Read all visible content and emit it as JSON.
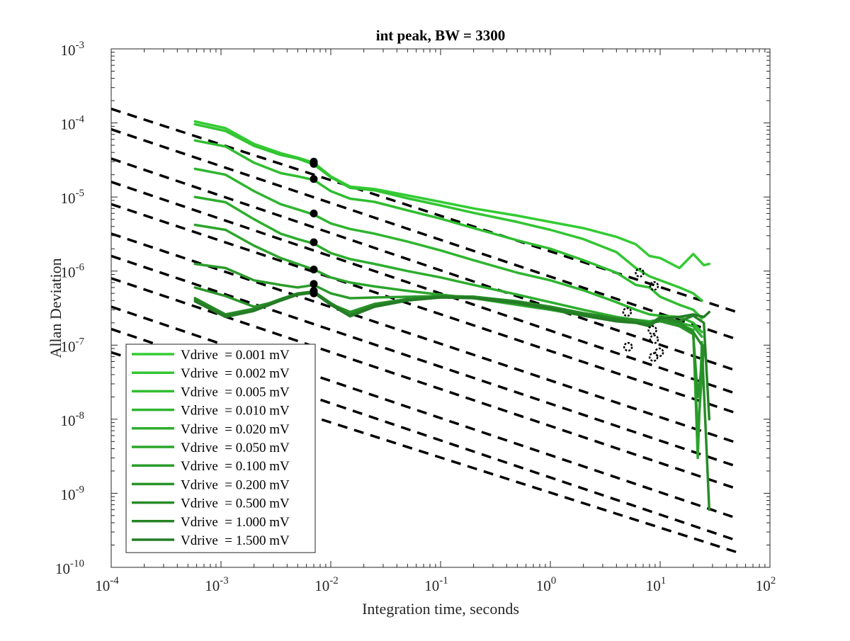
{
  "chart_data": {
    "type": "line",
    "title": "int peak, BW = 3300",
    "xlabel": "Integration time, seconds",
    "ylabel": "Allan Deviation",
    "xscale": "log",
    "yscale": "log",
    "xlim": [
      0.0001,
      100
    ],
    "ylim": [
      1e-10,
      0.001
    ],
    "xticks": [
      {
        "value": 0.0001,
        "base": "10",
        "exp": "-4"
      },
      {
        "value": 0.001,
        "base": "10",
        "exp": "-3"
      },
      {
        "value": 0.01,
        "base": "10",
        "exp": "-2"
      },
      {
        "value": 0.1,
        "base": "10",
        "exp": "-1"
      },
      {
        "value": 1,
        "base": "10",
        "exp": "0"
      },
      {
        "value": 10,
        "base": "10",
        "exp": "1"
      },
      {
        "value": 100,
        "base": "10",
        "exp": "2"
      }
    ],
    "yticks": [
      {
        "value": 1e-10,
        "base": "10",
        "exp": "-10"
      },
      {
        "value": 1e-09,
        "base": "10",
        "exp": "-9"
      },
      {
        "value": 1e-08,
        "base": "10",
        "exp": "-8"
      },
      {
        "value": 1e-07,
        "base": "10",
        "exp": "-7"
      },
      {
        "value": 1e-06,
        "base": "10",
        "exp": "-6"
      },
      {
        "value": 1e-05,
        "base": "10",
        "exp": "-5"
      },
      {
        "value": 0.0001,
        "base": "10",
        "exp": "-4"
      },
      {
        "value": 0.001,
        "base": "10",
        "exp": "-3"
      }
    ],
    "grid": false,
    "legend_position": "bottom-left",
    "series": [
      {
        "name": "Vdrive  = 0.001 mV",
        "color": "#33cc33",
        "x": [
          0.00058,
          0.0011,
          0.002,
          0.0035,
          0.005,
          0.007,
          0.01,
          0.015,
          0.025,
          0.05,
          0.1,
          0.2,
          0.5,
          1,
          2,
          4,
          6,
          8,
          10,
          15,
          20,
          25,
          28
        ],
        "y": [
          0.000105,
          8.5e-05,
          5.2e-05,
          3.9e-05,
          3.4e-05,
          2.9e-05,
          1.9e-05,
          1.38e-05,
          1.28e-05,
          1.05e-05,
          8.6e-06,
          7e-06,
          5.6e-06,
          4.6e-06,
          3.8e-06,
          2.9e-06,
          2.3e-06,
          1.6e-06,
          1.5e-06,
          1.1e-06,
          1.7e-06,
          1.2e-06,
          1.25e-06
        ]
      },
      {
        "name": "Vdrive  = 0.002 mV",
        "color": "#32c532",
        "x": [
          0.00058,
          0.0011,
          0.002,
          0.0035,
          0.005,
          0.007,
          0.01,
          0.015,
          0.025,
          0.05,
          0.1,
          0.2,
          0.5,
          1,
          2,
          4,
          6,
          8,
          10,
          15,
          20,
          24
        ],
        "y": [
          9.6e-05,
          7.8e-05,
          4.9e-05,
          3.7e-05,
          3.3e-05,
          2.75e-05,
          1.85e-05,
          1.33e-05,
          1.23e-05,
          9.6e-06,
          7.7e-06,
          6.1e-06,
          4.6e-06,
          3.6e-06,
          2.7e-06,
          1.8e-06,
          1.1e-06,
          8.5e-07,
          7.5e-07,
          6e-07,
          5e-07,
          4e-07
        ]
      },
      {
        "name": "Vdrive  = 0.005 mV",
        "color": "#30bd30",
        "x": [
          0.00058,
          0.0011,
          0.002,
          0.0035,
          0.005,
          0.007,
          0.01,
          0.015,
          0.025,
          0.05,
          0.1,
          0.2,
          0.5,
          1,
          2,
          4,
          6,
          8,
          10,
          15,
          20,
          24
        ],
        "y": [
          5.8e-05,
          4.8e-05,
          2.9e-05,
          2.1e-05,
          1.9e-05,
          1.7e-05,
          1.2e-05,
          9.5e-06,
          8.6e-06,
          6.6e-06,
          5.1e-06,
          3.8e-06,
          2.6e-06,
          2e-06,
          1.4e-06,
          9.5e-07,
          6.5e-07,
          6e-07,
          4.5e-07,
          3.5e-07,
          3e-07,
          2.3e-07
        ]
      },
      {
        "name": "Vdrive  = 0.010 mV",
        "color": "#2fb52f",
        "x": [
          0.00058,
          0.0011,
          0.002,
          0.0035,
          0.005,
          0.007,
          0.01,
          0.015,
          0.025,
          0.05,
          0.1,
          0.2,
          0.5,
          1,
          2,
          4,
          6,
          8,
          10,
          15,
          20,
          24
        ],
        "y": [
          2.4e-05,
          2e-05,
          1.2e-05,
          8e-06,
          6.8e-06,
          5.8e-06,
          4.4e-06,
          3.7e-06,
          3.2e-06,
          2.5e-06,
          1.9e-06,
          1.4e-06,
          9.5e-07,
          7.5e-07,
          5.5e-07,
          3.8e-07,
          3e-07,
          2.6e-07,
          2.5e-07,
          2.4e-07,
          2e-07,
          1.5e-07
        ]
      },
      {
        "name": "Vdrive  = 0.020 mV",
        "color": "#2ead2e",
        "x": [
          0.00058,
          0.0011,
          0.002,
          0.0035,
          0.005,
          0.007,
          0.01,
          0.015,
          0.025,
          0.05,
          0.1,
          0.2,
          0.5,
          1,
          2,
          4,
          6,
          8,
          10,
          15,
          20,
          24
        ],
        "y": [
          1e-05,
          8.5e-06,
          5e-06,
          3.2e-06,
          2.7e-06,
          2.35e-06,
          1.75e-06,
          1.45e-06,
          1.25e-06,
          1e-06,
          8.2e-07,
          6.5e-07,
          4.8e-07,
          3.8e-07,
          3e-07,
          2.4e-07,
          2.2e-07,
          2.1e-07,
          2.2e-07,
          2e-07,
          1.8e-07,
          1.3e-07
        ]
      },
      {
        "name": "Vdrive  = 0.050 mV",
        "color": "#2ca52c",
        "x": [
          0.00058,
          0.0011,
          0.002,
          0.0035,
          0.005,
          0.007,
          0.01,
          0.015,
          0.025,
          0.05,
          0.1,
          0.2,
          0.5,
          1,
          2,
          4,
          6,
          8,
          10,
          15,
          20,
          22,
          24
        ],
        "y": [
          4.2e-06,
          3.6e-06,
          2.2e-06,
          1.5e-06,
          1.25e-06,
          1.05e-06,
          8.2e-07,
          7e-07,
          6.2e-07,
          5.4e-07,
          4.8e-07,
          4.3e-07,
          3.5e-07,
          3e-07,
          2.5e-07,
          2.1e-07,
          2e-07,
          2e-07,
          2.1e-07,
          1.9e-07,
          1.6e-07,
          3e-09,
          1.1e-07
        ]
      },
      {
        "name": "Vdrive  = 0.100 mV",
        "color": "#2b9c2b",
        "x": [
          0.00058,
          0.0011,
          0.002,
          0.0035,
          0.005,
          0.007,
          0.01,
          0.015,
          0.025,
          0.05,
          0.1,
          0.2,
          0.5,
          1,
          2,
          4,
          6,
          8,
          10,
          15,
          20,
          22,
          25
        ],
        "y": [
          1.25e-06,
          1.1e-06,
          7.5e-07,
          6.5e-07,
          6e-07,
          6.5e-07,
          5e-07,
          4.3e-07,
          4.4e-07,
          4.5e-07,
          4.6e-07,
          4.5e-07,
          3.8e-07,
          3.3e-07,
          2.7e-07,
          2.3e-07,
          2.1e-07,
          2e-07,
          2.2e-07,
          1.8e-07,
          1.5e-07,
          6e-09,
          1e-07
        ]
      },
      {
        "name": "Vdrive  = 0.200 mV",
        "color": "#299429",
        "x": [
          0.00058,
          0.0011,
          0.002,
          0.0035,
          0.005,
          0.007,
          0.01,
          0.015,
          0.025,
          0.05,
          0.1,
          0.2,
          0.5,
          1,
          2,
          4,
          6,
          8,
          10,
          15,
          20,
          22,
          25
        ],
        "y": [
          6e-07,
          4.6e-07,
          3.3e-07,
          4e-07,
          4.8e-07,
          5.2e-07,
          3.6e-07,
          2.8e-07,
          3.6e-07,
          4.2e-07,
          4.6e-07,
          4.5e-07,
          3.9e-07,
          3.3e-07,
          2.7e-07,
          2.3e-07,
          2.2e-07,
          2e-07,
          2.1e-07,
          1.8e-07,
          1.4e-07,
          2e-08,
          9e-08
        ]
      },
      {
        "name": "Vdrive  = 0.500 mV",
        "color": "#288c28",
        "x": [
          0.00058,
          0.0011,
          0.002,
          0.0035,
          0.005,
          0.007,
          0.01,
          0.015,
          0.025,
          0.05,
          0.1,
          0.2,
          0.5,
          1,
          2,
          4,
          6,
          8,
          10,
          15,
          20,
          24,
          28
        ],
        "y": [
          4.3e-07,
          2.6e-07,
          3.1e-07,
          4.2e-07,
          5e-07,
          5.3e-07,
          3.7e-07,
          2.6e-07,
          3.5e-07,
          4.2e-07,
          4.6e-07,
          4.5e-07,
          3.9e-07,
          3.3e-07,
          2.7e-07,
          2.3e-07,
          2.1e-07,
          1.9e-07,
          2.2e-07,
          2e-07,
          1.5e-07,
          1e-07,
          6e-10
        ]
      },
      {
        "name": "Vdrive  = 1.000 mV",
        "color": "#268426",
        "x": [
          0.00058,
          0.0011,
          0.002,
          0.0035,
          0.005,
          0.007,
          0.01,
          0.015,
          0.025,
          0.05,
          0.1,
          0.2,
          0.5,
          1,
          2,
          4,
          6,
          8,
          10,
          15,
          20,
          25,
          28
        ],
        "y": [
          4.1e-07,
          2.5e-07,
          3e-07,
          4.1e-07,
          4.9e-07,
          5.2e-07,
          3.6e-07,
          2.5e-07,
          3.4e-07,
          4.1e-07,
          4.5e-07,
          4.4e-07,
          3.8e-07,
          3.2e-07,
          2.6e-07,
          2.2e-07,
          2e-07,
          1.9e-07,
          2.4e-07,
          2.1e-07,
          2.5e-07,
          2e-07,
          1e-08
        ]
      },
      {
        "name": "Vdrive  = 1.500 mV",
        "color": "#257c25",
        "x": [
          0.00058,
          0.0011,
          0.002,
          0.0035,
          0.005,
          0.007,
          0.01,
          0.015,
          0.025,
          0.05,
          0.1,
          0.2,
          0.5,
          1,
          2,
          4,
          6,
          8,
          10,
          15,
          20,
          25,
          28
        ],
        "y": [
          3.9e-07,
          2.4e-07,
          2.9e-07,
          4e-07,
          4.8e-07,
          5.1e-07,
          3.5e-07,
          2.45e-07,
          3.3e-07,
          4e-07,
          4.4e-07,
          4.3e-07,
          3.7e-07,
          3.1e-07,
          2.5e-07,
          2.1e-07,
          2e-07,
          1.8e-07,
          2.3e-07,
          2.4e-07,
          2.6e-07,
          2.4e-07,
          2.8e-07
        ]
      }
    ],
    "reference_lines": {
      "style": "dashed",
      "color": "#000000",
      "x_range": [
        0.0001,
        50
      ],
      "values_at_x0": [
        0.000155,
        8.2e-05,
        3.3e-05,
        1.6e-05,
        8e-06,
        3.2e-06,
        1.6e-06,
        8e-07,
        3.3e-07,
        1.65e-07,
        8e-08
      ],
      "values_at_x1": [
        2.8e-07,
        1.2e-07,
        4.5e-08,
        2.2e-08,
        1.2e-08,
        4.8e-09,
        2.3e-09,
        1.15e-09,
        4.6e-10,
        2.3e-10,
        1.6e-10
      ]
    },
    "filled_markers": [
      {
        "x": 0.007,
        "y": 3e-05
      },
      {
        "x": 0.007,
        "y": 2.8e-05
      },
      {
        "x": 0.007,
        "y": 1.75e-05
      },
      {
        "x": 0.007,
        "y": 6e-06
      },
      {
        "x": 0.007,
        "y": 2.45e-06
      },
      {
        "x": 0.007,
        "y": 1.05e-06
      },
      {
        "x": 0.007,
        "y": 6.7e-07
      },
      {
        "x": 0.007,
        "y": 5.4e-07
      },
      {
        "x": 0.007,
        "y": 5e-07
      }
    ],
    "open_markers": [
      {
        "x": 6.5,
        "y": 9.5e-07
      },
      {
        "x": 8.8,
        "y": 6.3e-07
      },
      {
        "x": 5.0,
        "y": 2.8e-07
      },
      {
        "x": 8.5,
        "y": 1.6e-07
      },
      {
        "x": 8.8,
        "y": 1.2e-07
      },
      {
        "x": 9.8,
        "y": 8e-08
      },
      {
        "x": 8.7,
        "y": 6.9e-08
      },
      {
        "x": 5.1,
        "y": 9.5e-08
      }
    ]
  }
}
